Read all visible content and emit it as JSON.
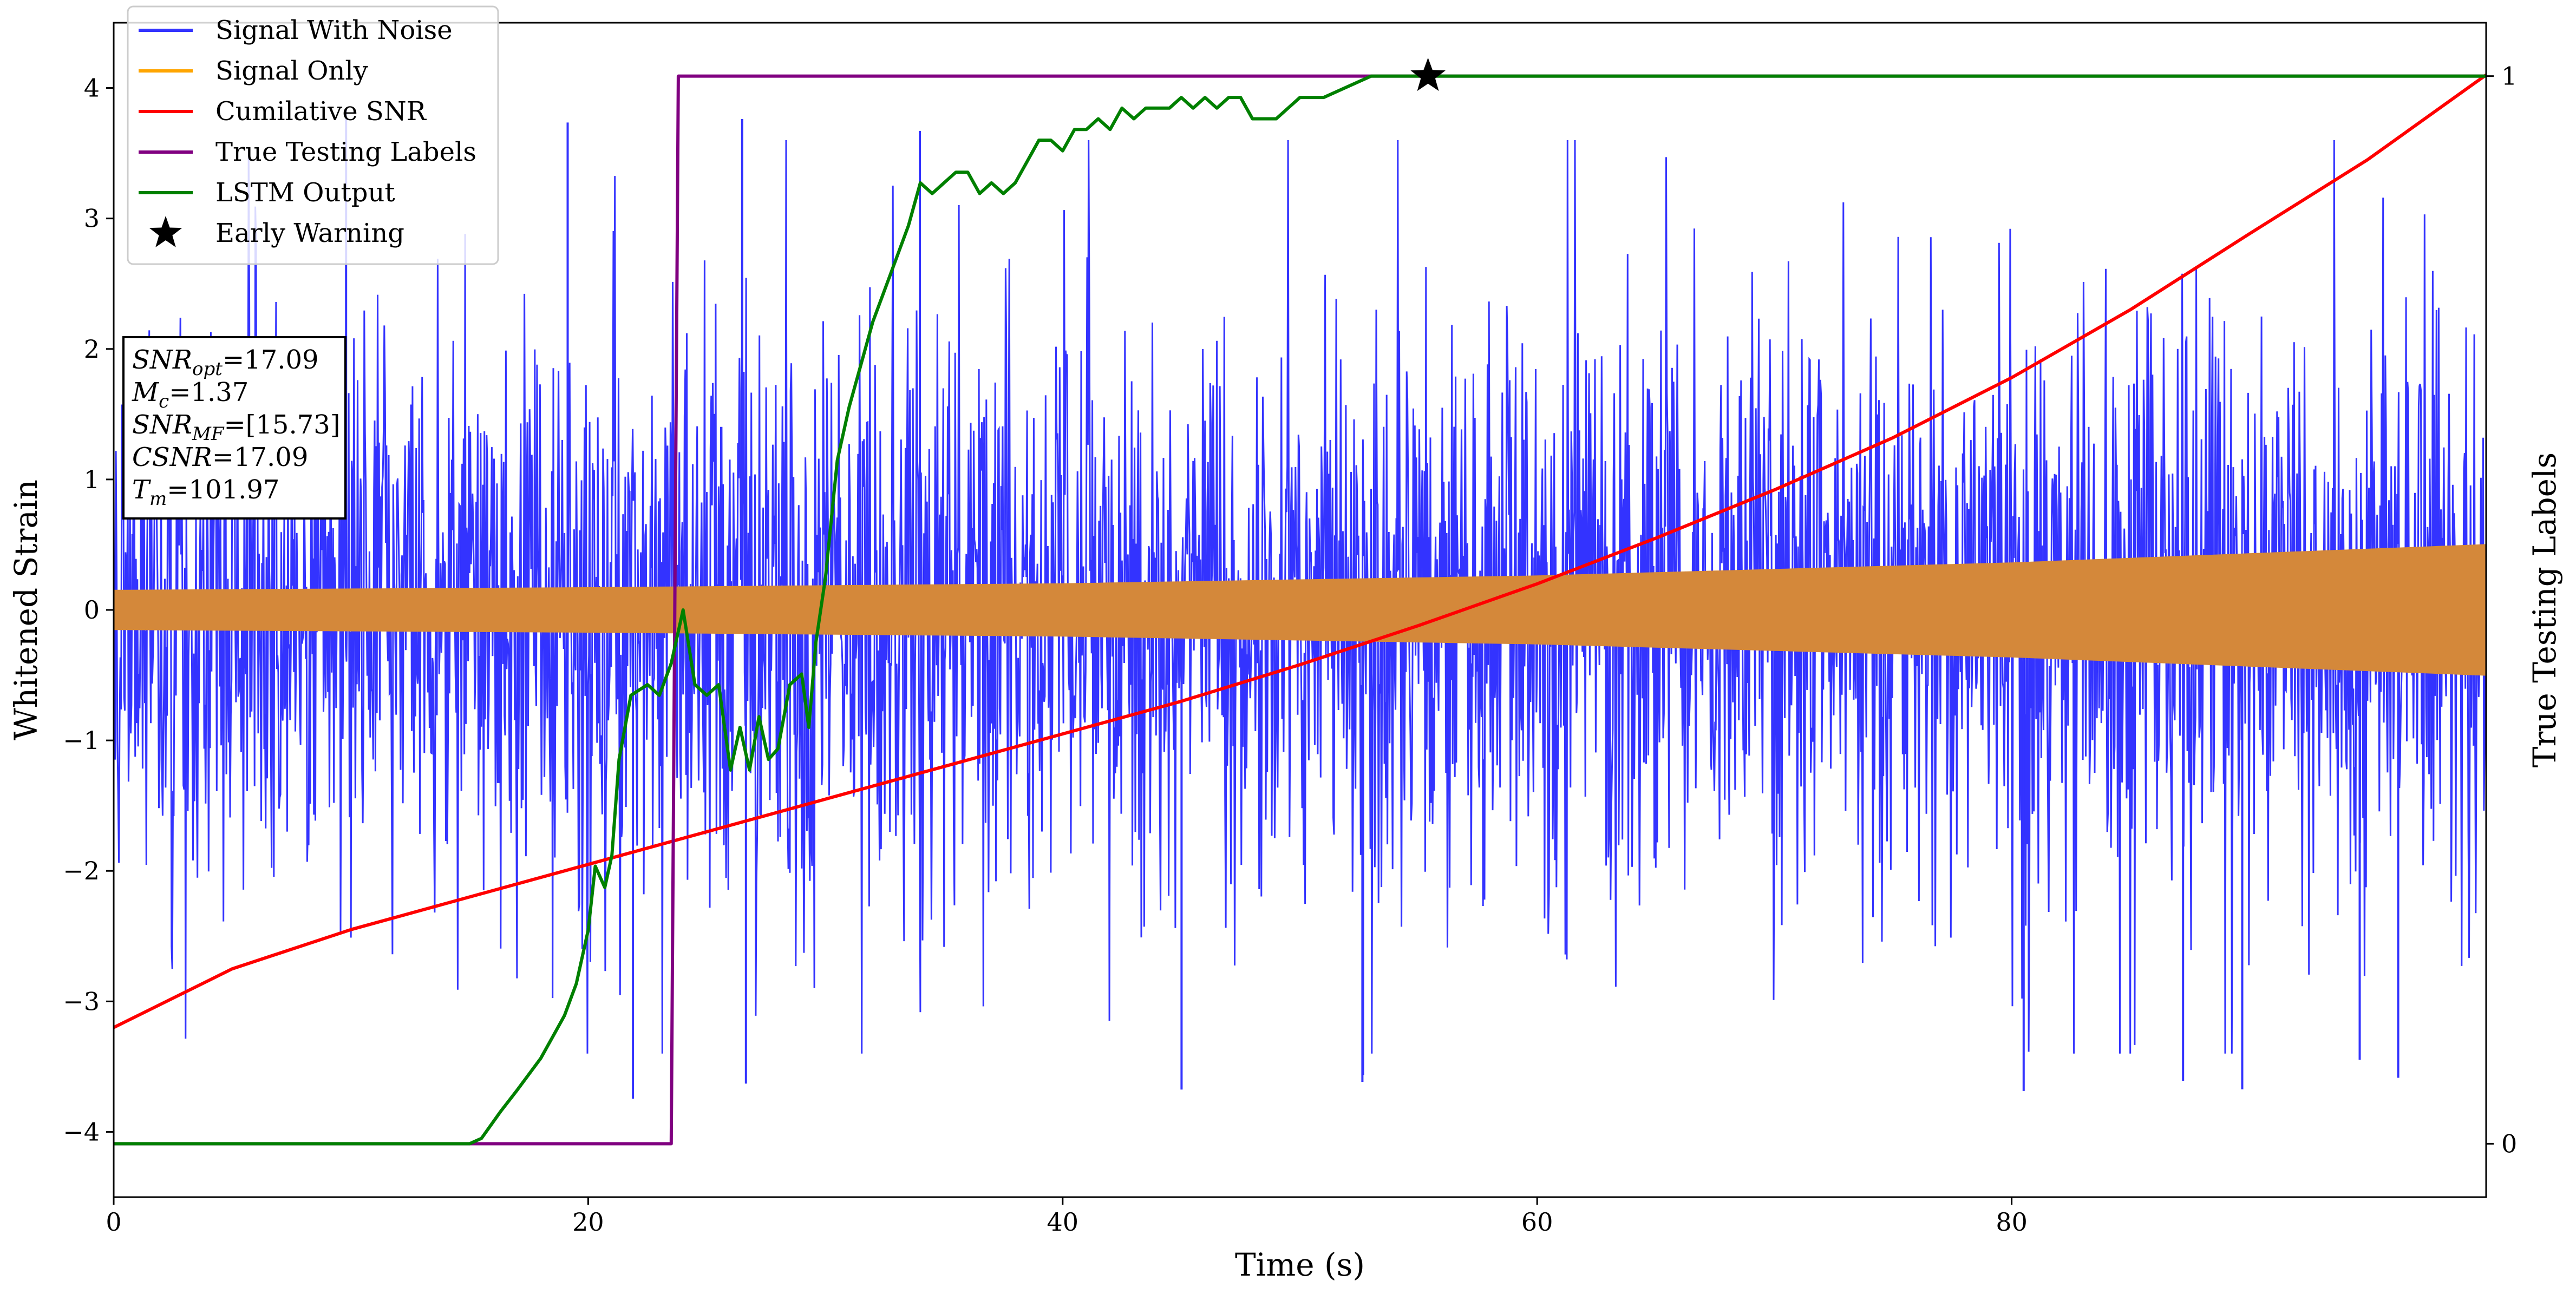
{
  "chart_data": {
    "type": "line",
    "xlabel": "Time (s)",
    "ylabel_left": "Whitened Strain",
    "ylabel_right": "True Testing Labels",
    "xlim": [
      0,
      100
    ],
    "ylim_left": [
      -4.5,
      4.5
    ],
    "ylim_right": [
      -0.05,
      1.05
    ],
    "x_ticks": [
      0,
      20,
      40,
      60,
      80
    ],
    "y_ticks_left": [
      -4,
      -3,
      -2,
      -1,
      0,
      1,
      2,
      3,
      4
    ],
    "y_ticks_right": [
      0,
      1
    ],
    "grid": false,
    "legend_position": "top-left",
    "legend": [
      {
        "label": "Signal With Noise",
        "color": "#3333ff",
        "marker": "line"
      },
      {
        "label": "Signal Only",
        "color": "#ffa500",
        "marker": "line"
      },
      {
        "label": "Cumilative SNR",
        "color": "#ff0000",
        "marker": "line"
      },
      {
        "label": "True Testing Labels",
        "color": "#800080",
        "marker": "line"
      },
      {
        "label": "LSTM Output",
        "color": "#008000",
        "marker": "line"
      },
      {
        "label": "Early Warning",
        "color": "#000000",
        "marker": "star"
      }
    ],
    "info_box": [
      {
        "main": "SNR",
        "sub": "opt",
        "value": "=17.09"
      },
      {
        "main": "M",
        "sub": "c",
        "value": "=1.37"
      },
      {
        "main": "SNR",
        "sub": "MF",
        "value": "=[15.73]"
      },
      {
        "main": "CSNR",
        "sub": "",
        "value": "=17.09"
      },
      {
        "main": "T",
        "sub": "m",
        "value": "=101.97"
      }
    ],
    "series": [
      {
        "name": "Signal With Noise",
        "axis": "left",
        "style": "noise-band",
        "color": "#3333ff",
        "envelope_core": [
          1.3,
          1.3
        ],
        "typical_peaks": [
          -3.4,
          3.6
        ],
        "extreme_peaks": [
          -3.85,
          3.95
        ]
      },
      {
        "name": "Signal Only",
        "axis": "left",
        "style": "amplitude-envelope",
        "color": "#d4883a",
        "amplitude": {
          "x": [
            0,
            20,
            40,
            60,
            80,
            100
          ],
          "y": [
            0.15,
            0.17,
            0.2,
            0.26,
            0.36,
            0.5
          ]
        }
      },
      {
        "name": "Cumilative SNR",
        "axis": "left",
        "color": "#ff0000",
        "x": [
          0,
          5,
          10,
          15,
          20,
          25,
          30,
          35,
          40,
          45,
          50,
          55,
          60,
          65,
          70,
          75,
          80,
          85,
          90,
          95,
          100
        ],
        "y": [
          -3.2,
          -2.75,
          -2.45,
          -2.2,
          -1.95,
          -1.7,
          -1.45,
          -1.2,
          -0.95,
          -0.7,
          -0.42,
          -0.12,
          0.2,
          0.55,
          0.92,
          1.32,
          1.78,
          2.3,
          2.88,
          3.45,
          4.1
        ]
      },
      {
        "name": "True Testing Labels",
        "axis": "right",
        "color": "#800080",
        "x": [
          0,
          23.5,
          23.8,
          100
        ],
        "y": [
          0,
          0,
          1,
          1
        ]
      },
      {
        "name": "LSTM Output",
        "axis": "right",
        "color": "#008000",
        "x": [
          0,
          15,
          15.5,
          16.3,
          17,
          18,
          19,
          19.5,
          20,
          20.3,
          20.7,
          21,
          21.3,
          21.8,
          22.5,
          23,
          23.5,
          24,
          24.5,
          25,
          25.5,
          26,
          26.4,
          26.8,
          27.2,
          27.6,
          28,
          28.5,
          29,
          29.3,
          29.6,
          30,
          30.5,
          31,
          31.5,
          32,
          32.5,
          33,
          33.5,
          34,
          34.5,
          35,
          35.5,
          36,
          36.5,
          37,
          37.5,
          38,
          38.5,
          39,
          39.5,
          40,
          40.5,
          41,
          41.5,
          42,
          42.5,
          43,
          43.5,
          44,
          44.5,
          45,
          45.5,
          46,
          46.5,
          47,
          47.5,
          48,
          48.5,
          49,
          49.5,
          50,
          51,
          52,
          53,
          54,
          55.4,
          60,
          65,
          70,
          75,
          80,
          85,
          90,
          95,
          100
        ],
        "y": [
          0,
          0,
          0.005,
          0.03,
          0.05,
          0.08,
          0.12,
          0.15,
          0.2,
          0.26,
          0.24,
          0.27,
          0.36,
          0.42,
          0.43,
          0.42,
          0.45,
          0.5,
          0.43,
          0.42,
          0.43,
          0.35,
          0.39,
          0.35,
          0.4,
          0.36,
          0.37,
          0.43,
          0.44,
          0.39,
          0.47,
          0.53,
          0.64,
          0.69,
          0.73,
          0.77,
          0.8,
          0.83,
          0.86,
          0.9,
          0.89,
          0.9,
          0.91,
          0.91,
          0.89,
          0.9,
          0.89,
          0.9,
          0.92,
          0.94,
          0.94,
          0.93,
          0.95,
          0.95,
          0.96,
          0.95,
          0.97,
          0.96,
          0.97,
          0.97,
          0.97,
          0.98,
          0.97,
          0.98,
          0.97,
          0.98,
          0.98,
          0.96,
          0.96,
          0.96,
          0.97,
          0.98,
          0.98,
          0.99,
          1.0,
          1.0,
          1.0,
          1.0,
          1.0,
          1.0,
          1.0,
          1.0,
          1.0,
          1.0,
          1.0,
          1.0
        ]
      },
      {
        "name": "Early Warning",
        "axis": "right",
        "type": "scatter",
        "marker": "star",
        "color": "#000000",
        "x": [
          55.4
        ],
        "y": [
          1.0
        ]
      }
    ]
  }
}
